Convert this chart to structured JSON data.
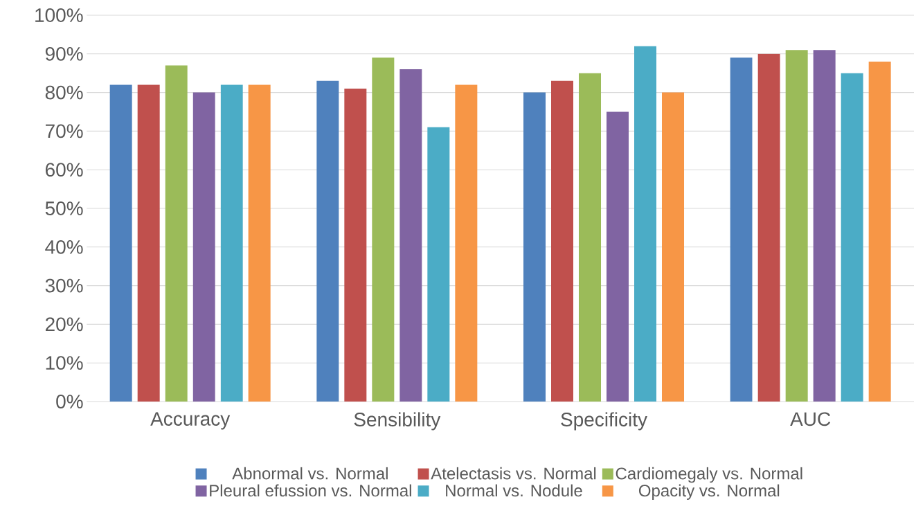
{
  "chart_data": {
    "type": "bar",
    "categories": [
      "Accuracy",
      "Sensibility",
      "Specificity",
      "AUC"
    ],
    "series": [
      {
        "name": "Abnormal vs. Normal",
        "color": "#4f81bd",
        "values": [
          82,
          83,
          80,
          89
        ]
      },
      {
        "name": "Atelectasis vs. Normal",
        "color": "#c0504d",
        "values": [
          82,
          81,
          83,
          90
        ]
      },
      {
        "name": "Cardiomegaly vs. Normal",
        "color": "#9bbb59",
        "values": [
          87,
          89,
          85,
          91
        ]
      },
      {
        "name": "Pleural efussion vs. Normal",
        "color": "#8064a2",
        "values": [
          80,
          86,
          75,
          91
        ]
      },
      {
        "name": "Normal vs. Nodule",
        "color": "#4bacc6",
        "values": [
          82,
          71,
          92,
          85
        ]
      },
      {
        "name": "Opacity vs. Normal",
        "color": "#f79646",
        "values": [
          82,
          82,
          80,
          88
        ]
      }
    ],
    "ylim": [
      0,
      100
    ],
    "yticks": [
      {
        "value": 0,
        "label": "0%"
      },
      {
        "value": 10,
        "label": "10%"
      },
      {
        "value": 20,
        "label": "20%"
      },
      {
        "value": 30,
        "label": "30%"
      },
      {
        "value": 40,
        "label": "40%"
      },
      {
        "value": 50,
        "label": "50%"
      },
      {
        "value": 60,
        "label": "60%"
      },
      {
        "value": 70,
        "label": "70%"
      },
      {
        "value": 80,
        "label": "80%"
      },
      {
        "value": 90,
        "label": "90%"
      },
      {
        "value": 100,
        "label": "100%"
      }
    ],
    "grid": "y",
    "legend": "bottom"
  }
}
